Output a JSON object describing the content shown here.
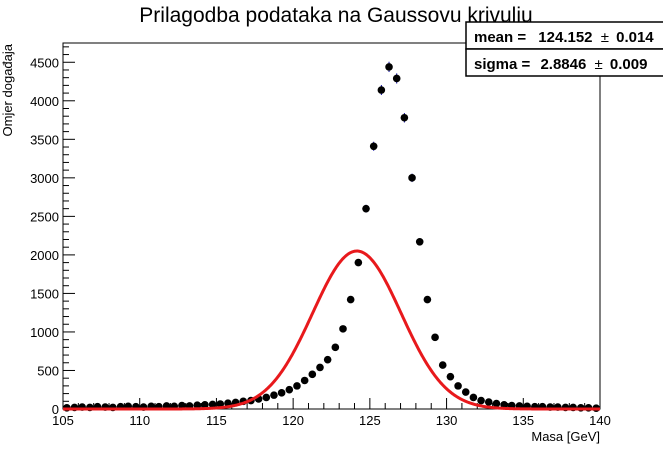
{
  "chart_data": {
    "type": "scatter",
    "title": "Prilagodba podataka na Gaussovu krivulju",
    "xlabel": "Masa [GeV]",
    "ylabel": "Omjer događaja",
    "xlim": [
      105,
      140
    ],
    "ylim": [
      0,
      4750
    ],
    "x_ticks": [
      "105",
      "110",
      "115",
      "120",
      "125",
      "130",
      "135",
      "140"
    ],
    "y_ticks": [
      "0",
      "500",
      "1000",
      "1500",
      "2000",
      "2500",
      "3000",
      "3500",
      "4000",
      "4500"
    ],
    "grid": false,
    "legend": "none",
    "stats_box": {
      "position": "top-right",
      "rows": [
        {
          "label": "mean =",
          "value": "124.152",
          "pm": "±",
          "err": "0.014"
        },
        {
          "label": "sigma =",
          "value": "2.8846",
          "pm": "±",
          "err": "0.009"
        }
      ]
    },
    "colors": {
      "points": "#000000",
      "error_bars": "#00009b",
      "fit_curve": "#e8191c",
      "frame": "#000000"
    },
    "series": [
      {
        "kind": "points",
        "x": [
          105.25,
          105.75,
          106.25,
          106.75,
          107.25,
          107.75,
          108.25,
          108.75,
          109.25,
          109.75,
          110.25,
          110.75,
          111.25,
          111.75,
          112.25,
          112.75,
          113.25,
          113.75,
          114.25,
          114.75,
          115.25,
          115.75,
          116.25,
          116.75,
          117.25,
          117.75,
          118.25,
          118.75,
          119.25,
          119.75,
          120.25,
          120.75,
          121.25,
          121.75,
          122.25,
          122.75,
          123.25,
          123.75,
          124.25,
          124.75,
          125.25,
          125.75,
          126.25,
          126.75,
          127.25,
          127.75,
          128.25,
          128.75,
          129.25,
          129.75,
          130.25,
          130.75,
          131.25,
          131.75,
          132.25,
          132.75,
          133.25,
          133.75,
          134.25,
          134.75,
          135.25,
          135.75,
          136.25,
          136.75,
          137.25,
          137.75,
          138.25,
          138.75,
          139.25,
          139.75
        ],
        "y": [
          15,
          20,
          25,
          20,
          30,
          25,
          20,
          30,
          35,
          30,
          25,
          35,
          30,
          40,
          35,
          45,
          40,
          50,
          55,
          60,
          65,
          75,
          85,
          100,
          110,
          130,
          150,
          180,
          210,
          250,
          300,
          370,
          450,
          540,
          640,
          800,
          1040,
          1420,
          1900,
          2600,
          3410,
          4140,
          4440,
          4290,
          3780,
          3000,
          2170,
          1420,
          930,
          570,
          420,
          300,
          220,
          150,
          110,
          90,
          70,
          55,
          45,
          40,
          35,
          30,
          30,
          25,
          25,
          20,
          20,
          15,
          15,
          10
        ]
      },
      {
        "kind": "gaussian-fit",
        "mean": 124.152,
        "sigma": 2.8846,
        "amplitude": 2050
      }
    ]
  }
}
